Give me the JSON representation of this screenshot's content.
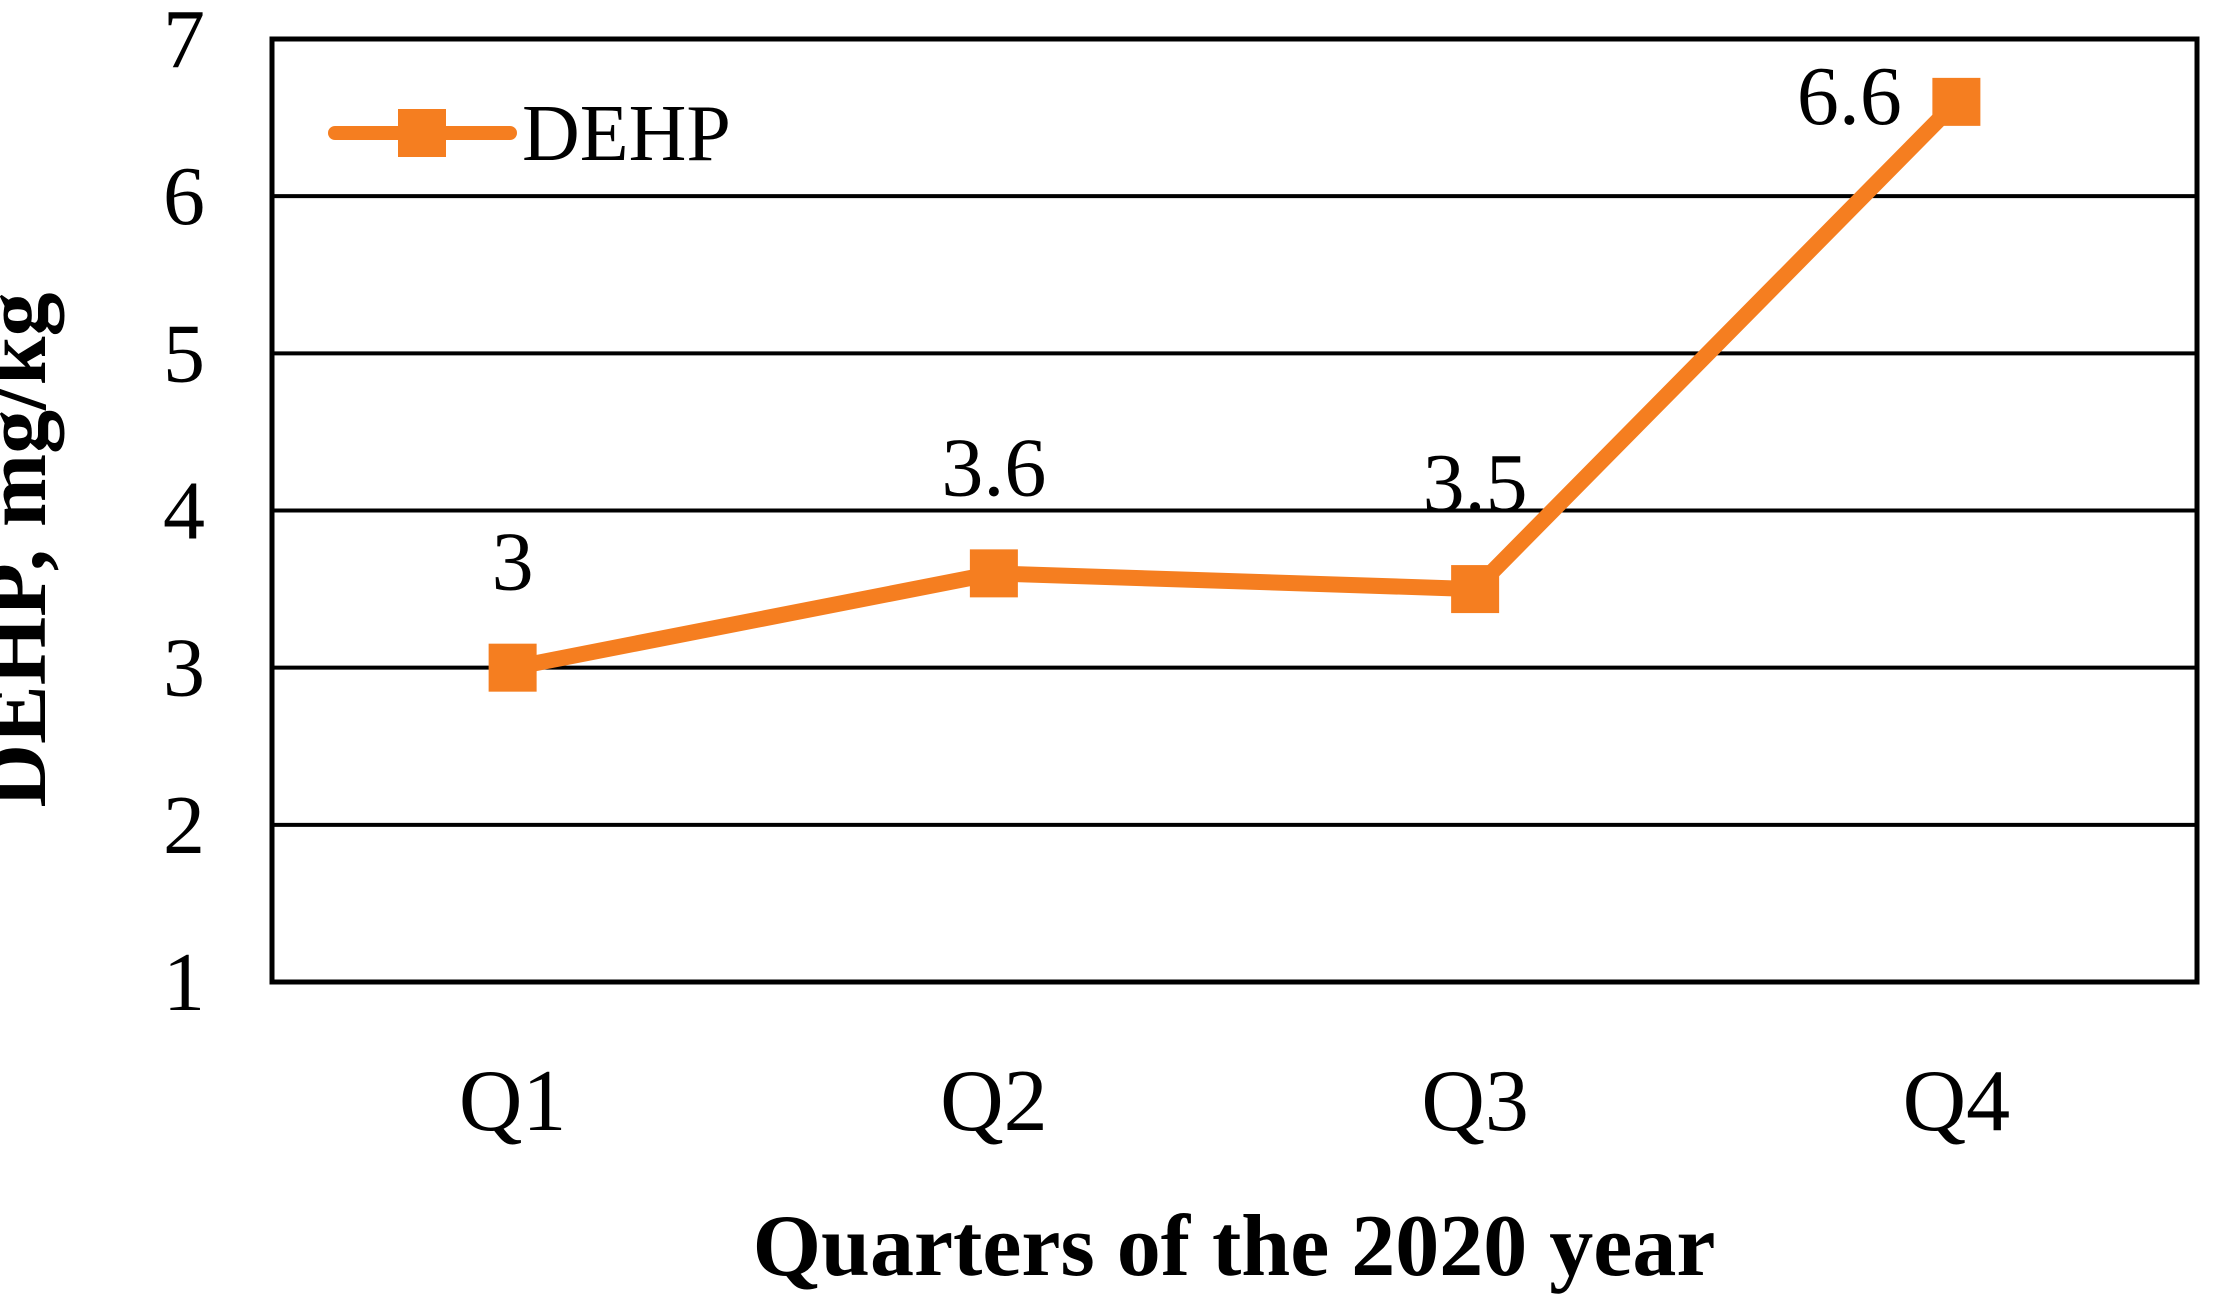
{
  "figure": {
    "background": "#ffffff",
    "description": "Line chart of DEHP concentration per quarter of 2020"
  },
  "chart_data": {
    "type": "line",
    "categories": [
      "Q1",
      "Q2",
      "Q3",
      "Q4"
    ],
    "series": [
      {
        "name": "DEHP",
        "values": [
          3,
          3.6,
          3.5,
          6.6
        ],
        "data_labels": [
          "3",
          "3.6",
          "3.5",
          "6.6"
        ],
        "label_placements": [
          "above",
          "above",
          "above",
          "left"
        ],
        "color": "#F57E20",
        "marker": "square"
      }
    ],
    "title": "",
    "xlabel": "Quarters of the 2020 year",
    "ylabel": "DEHP, mg/kg",
    "ylim": [
      1,
      7
    ],
    "yticks": [
      7,
      6,
      5,
      4,
      3,
      2,
      1
    ],
    "grid": "horizontal",
    "gridline_color": "#000000",
    "axis_color": "#000000",
    "legend_position": "top-left-inside",
    "plot_border": true
  }
}
